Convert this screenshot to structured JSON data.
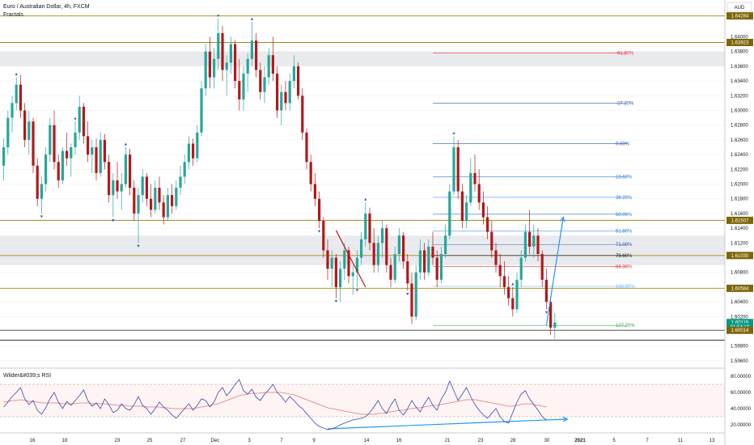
{
  "header": {
    "title": "Euro / Australian Dollar, 4h, FXCM",
    "indicator": "Fractals",
    "currency": "AUD"
  },
  "rsi_panel": {
    "title": "Wilder&#039;s RSI",
    "ylabels": [
      "80.00000",
      "60.00000",
      "40.00000",
      "20.00000"
    ]
  },
  "price_axis": {
    "ylabels": [
      "1.64400",
      "1.64000",
      "1.63800",
      "1.63600",
      "1.63400",
      "1.63200",
      "1.63000",
      "1.62800",
      "1.62600",
      "1.62400",
      "1.62200",
      "1.62000",
      "1.61800",
      "1.61600",
      "1.61400",
      "1.61200",
      "1.60800",
      "1.60400",
      "1.60200",
      "1.59800",
      "1.59600"
    ]
  },
  "badges": [
    {
      "price": 1.64284,
      "label": "1.64284",
      "color": "#7d6608"
    },
    {
      "price": 1.63923,
      "label": "1.63923",
      "color": "#7d6608"
    },
    {
      "price": 1.61507,
      "label": "1.61507",
      "color": "#7d6608"
    },
    {
      "price": 1.6103,
      "label": "1.61030",
      "color": "#7d6608"
    },
    {
      "price": 1.60584,
      "label": "1.60584",
      "color": "#7d6608"
    },
    {
      "price": 1.60119,
      "label": "1.60119",
      "color": "#089981"
    },
    {
      "price": 1.6006,
      "label": "01:54:10",
      "color": "#089981"
    },
    {
      "price": 1.60014,
      "label": "1.60014",
      "color": "#7d6608"
    }
  ],
  "time_axis": {
    "labels": [
      "16",
      "18",
      "23",
      "25",
      "27",
      "Dec",
      "3",
      "7",
      "9",
      "14",
      "16",
      "21",
      "23",
      "28",
      "30",
      "2021",
      "5",
      "7",
      "11",
      "13"
    ]
  },
  "fib_levels": [
    {
      "label": "-61.80%",
      "price": 1.6378,
      "color": "#e53935"
    },
    {
      "label": "-27.20%",
      "price": 1.631,
      "color": "#1e5aa8"
    },
    {
      "label": "0.00%",
      "price": 1.6255,
      "color": "#1e5aa8"
    },
    {
      "label": "23.60%",
      "price": 1.621,
      "color": "#2a7fd4"
    },
    {
      "label": "38.20%",
      "price": 1.6182,
      "color": "#2a7fd4"
    },
    {
      "label": "50.00%",
      "price": 1.6159,
      "color": "#2a7fd4"
    },
    {
      "label": "61.80%",
      "price": 1.6136,
      "color": "#2a7fd4"
    },
    {
      "label": "71.00%",
      "price": 1.6118,
      "color": "#1e5aa8"
    },
    {
      "label": "78.60%",
      "price": 1.6103,
      "color": "#131722"
    },
    {
      "label": "86.30%",
      "price": 1.6088,
      "color": "#e53935"
    },
    {
      "label": "100.00%",
      "price": 1.6061,
      "color": "#64b5f6"
    },
    {
      "label": "127.20%",
      "price": 1.6008,
      "color": "#43a047"
    }
  ],
  "chart_data": {
    "type": "candlestick",
    "ylim": [
      1.595,
      1.645
    ],
    "rsi_ylim": [
      10,
      90
    ],
    "horizontal_levels": [
      1.64284,
      1.63923,
      1.61507,
      1.6103,
      1.60584,
      1.60014
    ],
    "zones": [
      [
        1.636,
        1.638
      ],
      [
        1.609,
        1.613
      ]
    ],
    "candles": [
      {
        "o": 1.6225,
        "h": 1.6262,
        "l": 1.6205,
        "c": 1.625
      },
      {
        "o": 1.625,
        "h": 1.63,
        "l": 1.624,
        "c": 1.629
      },
      {
        "o": 1.629,
        "h": 1.632,
        "l": 1.627,
        "c": 1.631
      },
      {
        "o": 1.631,
        "h": 1.6345,
        "l": 1.63,
        "c": 1.6335
      },
      {
        "o": 1.6335,
        "h": 1.6348,
        "l": 1.629,
        "c": 1.63
      },
      {
        "o": 1.63,
        "h": 1.631,
        "l": 1.625,
        "c": 1.626
      },
      {
        "o": 1.626,
        "h": 1.63,
        "l": 1.624,
        "c": 1.6285
      },
      {
        "o": 1.6285,
        "h": 1.629,
        "l": 1.6215,
        "c": 1.6225
      },
      {
        "o": 1.6225,
        "h": 1.6235,
        "l": 1.617,
        "c": 1.618
      },
      {
        "o": 1.618,
        "h": 1.621,
        "l": 1.616,
        "c": 1.62
      },
      {
        "o": 1.62,
        "h": 1.625,
        "l": 1.619,
        "c": 1.624
      },
      {
        "o": 1.624,
        "h": 1.629,
        "l": 1.623,
        "c": 1.628
      },
      {
        "o": 1.628,
        "h": 1.63,
        "l": 1.622,
        "c": 1.623
      },
      {
        "o": 1.623,
        "h": 1.624,
        "l": 1.6195,
        "c": 1.6205
      },
      {
        "o": 1.6205,
        "h": 1.625,
        "l": 1.62,
        "c": 1.6245
      },
      {
        "o": 1.6245,
        "h": 1.627,
        "l": 1.6225,
        "c": 1.6235
      },
      {
        "o": 1.6235,
        "h": 1.6255,
        "l": 1.621,
        "c": 1.625
      },
      {
        "o": 1.625,
        "h": 1.6285,
        "l": 1.624,
        "c": 1.627
      },
      {
        "o": 1.627,
        "h": 1.632,
        "l": 1.626,
        "c": 1.6305
      },
      {
        "o": 1.6305,
        "h": 1.631,
        "l": 1.6255,
        "c": 1.6265
      },
      {
        "o": 1.6265,
        "h": 1.6285,
        "l": 1.623,
        "c": 1.624
      },
      {
        "o": 1.624,
        "h": 1.626,
        "l": 1.6215,
        "c": 1.625
      },
      {
        "o": 1.625,
        "h": 1.6262,
        "l": 1.6205,
        "c": 1.6215
      },
      {
        "o": 1.6215,
        "h": 1.627,
        "l": 1.621,
        "c": 1.626
      },
      {
        "o": 1.626,
        "h": 1.6268,
        "l": 1.622,
        "c": 1.623
      },
      {
        "o": 1.623,
        "h": 1.624,
        "l": 1.6175,
        "c": 1.6185
      },
      {
        "o": 1.6185,
        "h": 1.6215,
        "l": 1.6155,
        "c": 1.6205
      },
      {
        "o": 1.6205,
        "h": 1.623,
        "l": 1.618,
        "c": 1.619
      },
      {
        "o": 1.619,
        "h": 1.6215,
        "l": 1.6165,
        "c": 1.62
      },
      {
        "o": 1.62,
        "h": 1.625,
        "l": 1.6195,
        "c": 1.624
      },
      {
        "o": 1.624,
        "h": 1.6248,
        "l": 1.6185,
        "c": 1.6195
      },
      {
        "o": 1.6195,
        "h": 1.6205,
        "l": 1.615,
        "c": 1.616
      },
      {
        "o": 1.616,
        "h": 1.6195,
        "l": 1.612,
        "c": 1.6185
      },
      {
        "o": 1.6185,
        "h": 1.622,
        "l": 1.6175,
        "c": 1.621
      },
      {
        "o": 1.621,
        "h": 1.6215,
        "l": 1.617,
        "c": 1.618
      },
      {
        "o": 1.618,
        "h": 1.62,
        "l": 1.6155,
        "c": 1.6165
      },
      {
        "o": 1.6165,
        "h": 1.6205,
        "l": 1.616,
        "c": 1.6195
      },
      {
        "o": 1.6195,
        "h": 1.621,
        "l": 1.6165,
        "c": 1.6175
      },
      {
        "o": 1.6175,
        "h": 1.6185,
        "l": 1.6145,
        "c": 1.6155
      },
      {
        "o": 1.6155,
        "h": 1.6195,
        "l": 1.615,
        "c": 1.6185
      },
      {
        "o": 1.6185,
        "h": 1.62,
        "l": 1.616,
        "c": 1.617
      },
      {
        "o": 1.617,
        "h": 1.6205,
        "l": 1.6165,
        "c": 1.6195
      },
      {
        "o": 1.6195,
        "h": 1.6225,
        "l": 1.6185,
        "c": 1.621
      },
      {
        "o": 1.621,
        "h": 1.624,
        "l": 1.62,
        "c": 1.623
      },
      {
        "o": 1.623,
        "h": 1.6265,
        "l": 1.622,
        "c": 1.6255
      },
      {
        "o": 1.6255,
        "h": 1.6262,
        "l": 1.6225,
        "c": 1.6235
      },
      {
        "o": 1.6235,
        "h": 1.628,
        "l": 1.623,
        "c": 1.627
      },
      {
        "o": 1.627,
        "h": 1.634,
        "l": 1.6265,
        "c": 1.633
      },
      {
        "o": 1.633,
        "h": 1.639,
        "l": 1.632,
        "c": 1.638
      },
      {
        "o": 1.638,
        "h": 1.64,
        "l": 1.633,
        "c": 1.6345
      },
      {
        "o": 1.6345,
        "h": 1.6385,
        "l": 1.633,
        "c": 1.637
      },
      {
        "o": 1.637,
        "h": 1.6425,
        "l": 1.6355,
        "c": 1.6405
      },
      {
        "o": 1.6405,
        "h": 1.6415,
        "l": 1.634,
        "c": 1.6355
      },
      {
        "o": 1.6355,
        "h": 1.6375,
        "l": 1.632,
        "c": 1.6365
      },
      {
        "o": 1.6365,
        "h": 1.64,
        "l": 1.635,
        "c": 1.639
      },
      {
        "o": 1.639,
        "h": 1.6395,
        "l": 1.633,
        "c": 1.634
      },
      {
        "o": 1.634,
        "h": 1.637,
        "l": 1.63,
        "c": 1.6315
      },
      {
        "o": 1.6315,
        "h": 1.636,
        "l": 1.63,
        "c": 1.635
      },
      {
        "o": 1.635,
        "h": 1.6378,
        "l": 1.6325,
        "c": 1.637
      },
      {
        "o": 1.637,
        "h": 1.642,
        "l": 1.636,
        "c": 1.6395
      },
      {
        "o": 1.6395,
        "h": 1.6405,
        "l": 1.6345,
        "c": 1.6355
      },
      {
        "o": 1.6355,
        "h": 1.6365,
        "l": 1.6315,
        "c": 1.6325
      },
      {
        "o": 1.6325,
        "h": 1.636,
        "l": 1.631,
        "c": 1.6345
      },
      {
        "o": 1.6345,
        "h": 1.6385,
        "l": 1.6335,
        "c": 1.6375
      },
      {
        "o": 1.6375,
        "h": 1.64,
        "l": 1.634,
        "c": 1.635
      },
      {
        "o": 1.635,
        "h": 1.636,
        "l": 1.629,
        "c": 1.63
      },
      {
        "o": 1.63,
        "h": 1.6335,
        "l": 1.628,
        "c": 1.6325
      },
      {
        "o": 1.6325,
        "h": 1.634,
        "l": 1.63,
        "c": 1.631
      },
      {
        "o": 1.631,
        "h": 1.635,
        "l": 1.63,
        "c": 1.634
      },
      {
        "o": 1.634,
        "h": 1.6375,
        "l": 1.633,
        "c": 1.636
      },
      {
        "o": 1.636,
        "h": 1.6365,
        "l": 1.6315,
        "c": 1.632
      },
      {
        "o": 1.632,
        "h": 1.633,
        "l": 1.626,
        "c": 1.627
      },
      {
        "o": 1.627,
        "h": 1.6275,
        "l": 1.622,
        "c": 1.623
      },
      {
        "o": 1.623,
        "h": 1.624,
        "l": 1.619,
        "c": 1.62
      },
      {
        "o": 1.62,
        "h": 1.6215,
        "l": 1.617,
        "c": 1.618
      },
      {
        "o": 1.618,
        "h": 1.619,
        "l": 1.614,
        "c": 1.615
      },
      {
        "o": 1.615,
        "h": 1.6155,
        "l": 1.61,
        "c": 1.611
      },
      {
        "o": 1.611,
        "h": 1.6125,
        "l": 1.607,
        "c": 1.6085
      },
      {
        "o": 1.6085,
        "h": 1.611,
        "l": 1.606,
        "c": 1.61
      },
      {
        "o": 1.61,
        "h": 1.6105,
        "l": 1.6045,
        "c": 1.606
      },
      {
        "o": 1.606,
        "h": 1.6095,
        "l": 1.604,
        "c": 1.6085
      },
      {
        "o": 1.6085,
        "h": 1.612,
        "l": 1.607,
        "c": 1.611
      },
      {
        "o": 1.611,
        "h": 1.6115,
        "l": 1.6065,
        "c": 1.6075
      },
      {
        "o": 1.6075,
        "h": 1.609,
        "l": 1.605,
        "c": 1.608
      },
      {
        "o": 1.608,
        "h": 1.611,
        "l": 1.606,
        "c": 1.61
      },
      {
        "o": 1.61,
        "h": 1.6135,
        "l": 1.609,
        "c": 1.6125
      },
      {
        "o": 1.6125,
        "h": 1.6175,
        "l": 1.6115,
        "c": 1.616
      },
      {
        "o": 1.616,
        "h": 1.6168,
        "l": 1.611,
        "c": 1.612
      },
      {
        "o": 1.612,
        "h": 1.614,
        "l": 1.608,
        "c": 1.609
      },
      {
        "o": 1.609,
        "h": 1.613,
        "l": 1.608,
        "c": 1.612
      },
      {
        "o": 1.612,
        "h": 1.615,
        "l": 1.61,
        "c": 1.614
      },
      {
        "o": 1.614,
        "h": 1.6145,
        "l": 1.608,
        "c": 1.609
      },
      {
        "o": 1.609,
        "h": 1.61,
        "l": 1.606,
        "c": 1.607
      },
      {
        "o": 1.607,
        "h": 1.6115,
        "l": 1.6065,
        "c": 1.6105
      },
      {
        "o": 1.6105,
        "h": 1.614,
        "l": 1.6095,
        "c": 1.613
      },
      {
        "o": 1.613,
        "h": 1.6135,
        "l": 1.6085,
        "c": 1.6095
      },
      {
        "o": 1.6095,
        "h": 1.6105,
        "l": 1.6055,
        "c": 1.6065
      },
      {
        "o": 1.6065,
        "h": 1.608,
        "l": 1.601,
        "c": 1.602
      },
      {
        "o": 1.602,
        "h": 1.609,
        "l": 1.6015,
        "c": 1.608
      },
      {
        "o": 1.608,
        "h": 1.6125,
        "l": 1.607,
        "c": 1.611
      },
      {
        "o": 1.611,
        "h": 1.612,
        "l": 1.607,
        "c": 1.608
      },
      {
        "o": 1.608,
        "h": 1.6125,
        "l": 1.6075,
        "c": 1.6115
      },
      {
        "o": 1.6115,
        "h": 1.6135,
        "l": 1.609,
        "c": 1.61
      },
      {
        "o": 1.61,
        "h": 1.611,
        "l": 1.606,
        "c": 1.607
      },
      {
        "o": 1.607,
        "h": 1.6115,
        "l": 1.6065,
        "c": 1.6105
      },
      {
        "o": 1.6105,
        "h": 1.6145,
        "l": 1.61,
        "c": 1.613
      },
      {
        "o": 1.613,
        "h": 1.62,
        "l": 1.6125,
        "c": 1.619
      },
      {
        "o": 1.619,
        "h": 1.6265,
        "l": 1.6185,
        "c": 1.625
      },
      {
        "o": 1.625,
        "h": 1.626,
        "l": 1.618,
        "c": 1.619
      },
      {
        "o": 1.619,
        "h": 1.62,
        "l": 1.614,
        "c": 1.615
      },
      {
        "o": 1.615,
        "h": 1.6185,
        "l": 1.614,
        "c": 1.6175
      },
      {
        "o": 1.6175,
        "h": 1.6235,
        "l": 1.617,
        "c": 1.6215
      },
      {
        "o": 1.6215,
        "h": 1.624,
        "l": 1.619,
        "c": 1.62
      },
      {
        "o": 1.62,
        "h": 1.622,
        "l": 1.6165,
        "c": 1.6175
      },
      {
        "o": 1.6175,
        "h": 1.619,
        "l": 1.6145,
        "c": 1.6155
      },
      {
        "o": 1.6155,
        "h": 1.617,
        "l": 1.6125,
        "c": 1.6135
      },
      {
        "o": 1.6135,
        "h": 1.615,
        "l": 1.61,
        "c": 1.611
      },
      {
        "o": 1.611,
        "h": 1.612,
        "l": 1.608,
        "c": 1.609
      },
      {
        "o": 1.609,
        "h": 1.6105,
        "l": 1.606,
        "c": 1.6075
      },
      {
        "o": 1.6075,
        "h": 1.6095,
        "l": 1.605,
        "c": 1.606
      },
      {
        "o": 1.606,
        "h": 1.6075,
        "l": 1.6035,
        "c": 1.6045
      },
      {
        "o": 1.6045,
        "h": 1.606,
        "l": 1.602,
        "c": 1.603
      },
      {
        "o": 1.603,
        "h": 1.608,
        "l": 1.6025,
        "c": 1.607
      },
      {
        "o": 1.607,
        "h": 1.611,
        "l": 1.606,
        "c": 1.61
      },
      {
        "o": 1.61,
        "h": 1.6145,
        "l": 1.6095,
        "c": 1.6135
      },
      {
        "o": 1.6135,
        "h": 1.6165,
        "l": 1.6105,
        "c": 1.6115
      },
      {
        "o": 1.6115,
        "h": 1.6145,
        "l": 1.61,
        "c": 1.613
      },
      {
        "o": 1.613,
        "h": 1.614,
        "l": 1.6095,
        "c": 1.6105
      },
      {
        "o": 1.6105,
        "h": 1.611,
        "l": 1.606,
        "c": 1.607
      },
      {
        "o": 1.607,
        "h": 1.6085,
        "l": 1.603,
        "c": 1.604
      },
      {
        "o": 1.604,
        "h": 1.6048,
        "l": 1.5995,
        "c": 1.6005
      },
      {
        "o": 1.6005,
        "h": 1.6025,
        "l": 1.599,
        "c": 1.6012
      }
    ],
    "rsi": [
      42,
      48,
      55,
      60,
      66,
      52,
      45,
      50,
      38,
      33,
      41,
      52,
      60,
      48,
      40,
      49,
      44,
      50,
      56,
      63,
      50,
      43,
      47,
      40,
      52,
      45,
      35,
      38,
      46,
      40,
      38,
      45,
      55,
      44,
      40,
      33,
      40,
      48,
      42,
      38,
      32,
      28,
      34,
      40,
      46,
      38,
      44,
      52,
      50,
      42,
      48,
      60,
      66,
      56,
      62,
      70,
      76,
      62,
      58,
      64,
      54,
      50,
      58,
      63,
      70,
      60,
      55,
      48,
      55,
      50,
      44,
      40,
      34,
      28,
      22,
      18,
      16,
      14,
      15,
      17,
      20,
      22,
      24,
      26,
      27,
      28,
      30,
      35,
      42,
      50,
      40,
      34,
      44,
      52,
      38,
      32,
      40,
      50,
      42,
      36,
      46,
      54,
      44,
      38,
      52,
      60,
      74,
      62,
      50,
      58,
      66,
      55,
      45,
      38,
      32,
      28,
      34,
      40,
      30,
      24,
      22,
      35,
      48,
      58,
      62,
      52,
      45,
      38,
      30,
      26
    ],
    "rsi_ma": [
      48,
      49,
      50,
      50,
      51,
      50,
      49,
      49,
      48,
      47,
      47,
      47,
      47,
      47,
      46,
      46,
      46,
      46,
      47,
      47,
      47,
      46,
      46,
      46,
      46,
      45,
      45,
      44,
      44,
      44,
      43,
      43,
      43,
      43,
      42,
      42,
      42,
      42,
      41,
      41,
      40,
      40,
      40,
      40,
      40,
      40,
      41,
      42,
      43,
      44,
      45,
      46,
      48,
      50,
      52,
      54,
      56,
      57,
      58,
      59,
      59,
      59,
      60,
      60,
      60,
      60,
      60,
      59,
      58,
      57,
      55,
      53,
      51,
      49,
      47,
      45,
      43,
      41,
      40,
      39,
      38,
      37,
      36,
      35,
      34,
      33,
      33,
      33,
      33,
      34,
      34,
      35,
      36,
      37,
      38,
      38,
      39,
      40,
      41,
      41,
      42,
      43,
      44,
      44,
      45,
      46,
      47,
      48,
      49,
      50,
      51,
      51,
      51,
      50,
      49,
      48,
      47,
      46,
      45,
      44,
      43,
      43,
      44,
      45,
      46,
      46,
      45,
      44,
      43,
      42
    ],
    "fractals_up": [
      3,
      17,
      29,
      51,
      59,
      86,
      107,
      121
    ],
    "fractals_down": [
      9,
      26,
      32,
      75,
      79,
      84,
      96,
      129
    ],
    "drawings": [
      {
        "type": "trendline",
        "x1": 79,
        "y1": 1.6137,
        "x2": 86,
        "y2": 1.606,
        "color": "#b71c1c"
      },
      {
        "type": "projection_arrow",
        "x1": 129,
        "y1": 1.6008,
        "x2": 133,
        "y2": 1.6155,
        "color": "#2196f3"
      },
      {
        "type": "rsi_divergence",
        "x1": 77,
        "y1": 15,
        "x2": 134,
        "y2": 27,
        "color": "#2196f3"
      }
    ]
  }
}
